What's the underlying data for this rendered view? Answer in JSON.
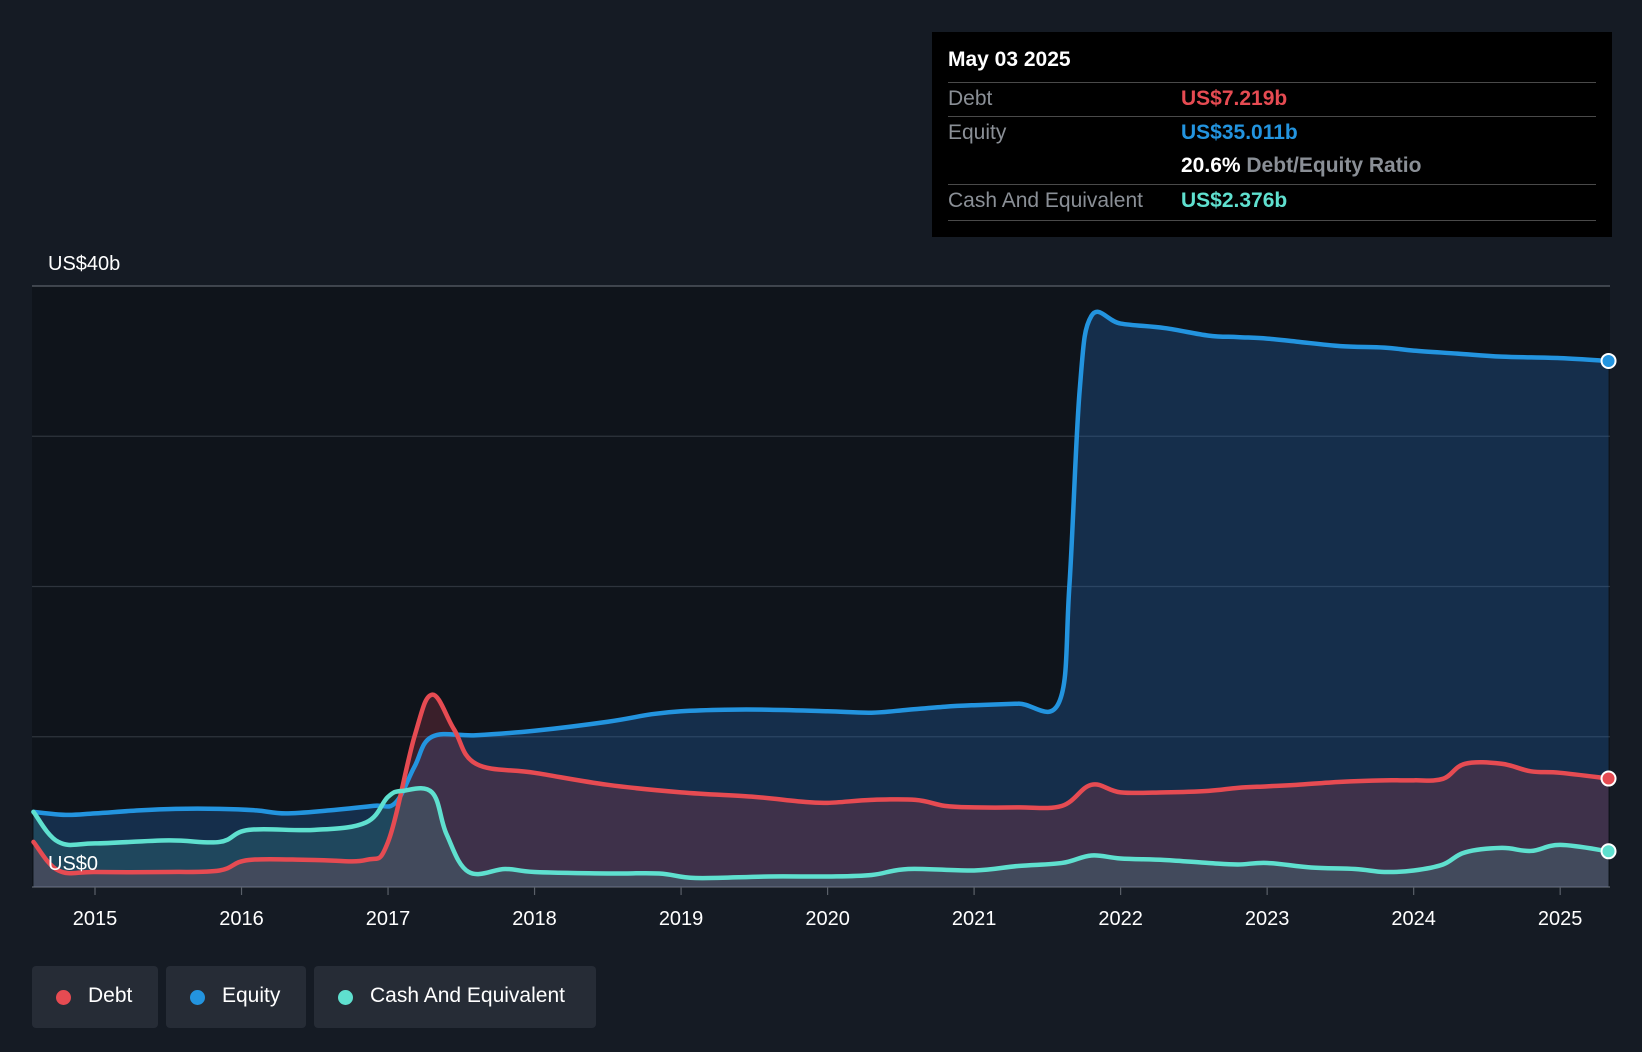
{
  "chart_data": {
    "type": "area",
    "y_labels": {
      "top": "US$40b",
      "bottom": "US$0"
    },
    "ylim": [
      0,
      40
    ],
    "xlim": [
      2014.57,
      2025.34
    ],
    "x_ticks": [
      "2015",
      "2016",
      "2017",
      "2018",
      "2019",
      "2020",
      "2021",
      "2022",
      "2023",
      "2024",
      "2025"
    ],
    "grid": true,
    "legend_position": "bottom-left",
    "series": [
      {
        "name": "Equity",
        "color": "#2394df",
        "x": [
          2014.58,
          2014.8,
          2015.0,
          2015.3,
          2015.55,
          2015.85,
          2016.1,
          2016.3,
          2016.6,
          2016.9,
          2017.05,
          2017.18,
          2017.3,
          2017.6,
          2018.0,
          2018.5,
          2018.8,
          2019.0,
          2019.3,
          2019.6,
          2020.0,
          2020.3,
          2020.55,
          2020.8,
          2021.0,
          2021.3,
          2021.58,
          2021.65,
          2021.72,
          2021.8,
          2022.0,
          2022.3,
          2022.6,
          2022.8,
          2023.0,
          2023.2,
          2023.5,
          2023.8,
          2024.0,
          2024.3,
          2024.6,
          2025.0,
          2025.33
        ],
        "values": [
          5.0,
          4.8,
          4.9,
          5.1,
          5.2,
          5.2,
          5.1,
          4.9,
          5.1,
          5.4,
          5.6,
          8.0,
          10.0,
          10.1,
          10.4,
          11.0,
          11.5,
          11.7,
          11.8,
          11.8,
          11.7,
          11.6,
          11.8,
          12.0,
          12.1,
          12.2,
          12.3,
          20.0,
          33.0,
          38.0,
          37.5,
          37.2,
          36.7,
          36.6,
          36.5,
          36.3,
          36.0,
          35.9,
          35.7,
          35.5,
          35.3,
          35.2,
          35.011
        ]
      },
      {
        "name": "Debt",
        "color": "#e64b52",
        "x": [
          2014.58,
          2014.75,
          2015.0,
          2015.5,
          2015.85,
          2016.05,
          2016.5,
          2016.85,
          2017.0,
          2017.18,
          2017.3,
          2017.45,
          2017.6,
          2018.0,
          2018.5,
          2019.0,
          2019.5,
          2019.8,
          2020.0,
          2020.3,
          2020.6,
          2020.8,
          2021.0,
          2021.3,
          2021.6,
          2021.8,
          2022.0,
          2022.3,
          2022.6,
          2022.8,
          2023.0,
          2023.2,
          2023.5,
          2023.8,
          2024.0,
          2024.2,
          2024.35,
          2024.6,
          2024.8,
          2025.0,
          2025.33
        ],
        "values": [
          3.0,
          1.1,
          1.0,
          1.0,
          1.1,
          1.8,
          1.8,
          1.8,
          3.0,
          10.0,
          12.8,
          10.5,
          8.2,
          7.6,
          6.8,
          6.3,
          6.0,
          5.7,
          5.6,
          5.8,
          5.8,
          5.4,
          5.3,
          5.3,
          5.4,
          6.8,
          6.3,
          6.3,
          6.4,
          6.6,
          6.7,
          6.8,
          7.0,
          7.1,
          7.1,
          7.2,
          8.2,
          8.2,
          7.7,
          7.6,
          7.219
        ]
      },
      {
        "name": "Cash And Equivalent",
        "color": "#5fe0cf",
        "x": [
          2014.58,
          2014.75,
          2015.0,
          2015.5,
          2015.85,
          2016.05,
          2016.5,
          2016.85,
          2017.0,
          2017.1,
          2017.3,
          2017.4,
          2017.55,
          2017.8,
          2018.0,
          2018.5,
          2018.85,
          2019.1,
          2019.6,
          2020.0,
          2020.3,
          2020.55,
          2021.0,
          2021.3,
          2021.6,
          2021.8,
          2022.0,
          2022.3,
          2022.6,
          2022.8,
          2023.0,
          2023.3,
          2023.6,
          2023.8,
          2024.0,
          2024.2,
          2024.35,
          2024.6,
          2024.8,
          2025.0,
          2025.33
        ],
        "values": [
          5.0,
          3.0,
          2.9,
          3.1,
          3.0,
          3.8,
          3.8,
          4.3,
          6.0,
          6.4,
          6.3,
          3.5,
          1.0,
          1.2,
          1.0,
          0.9,
          0.9,
          0.6,
          0.7,
          0.7,
          0.8,
          1.2,
          1.1,
          1.4,
          1.6,
          2.1,
          1.9,
          1.8,
          1.6,
          1.5,
          1.6,
          1.3,
          1.2,
          1.0,
          1.1,
          1.5,
          2.3,
          2.6,
          2.4,
          2.8,
          2.376
        ]
      }
    ]
  },
  "tooltip": {
    "date": "May 03 2025",
    "debt_label": "Debt",
    "debt_value": "US$7.219b",
    "equity_label": "Equity",
    "equity_value": "US$35.011b",
    "ratio_value": "20.6%",
    "ratio_label": "Debt/Equity Ratio",
    "cash_label": "Cash And Equivalent",
    "cash_value": "US$2.376b"
  },
  "legend": [
    {
      "label": "Debt",
      "color": "#e64b52"
    },
    {
      "label": "Equity",
      "color": "#2394df"
    },
    {
      "label": "Cash And Equivalent",
      "color": "#5fe0cf"
    }
  ],
  "colors": {
    "debt": "#e64b52",
    "equity": "#2394df",
    "cash": "#5fe0cf",
    "background": "#151b24",
    "tooltip_bg": "#000000"
  }
}
